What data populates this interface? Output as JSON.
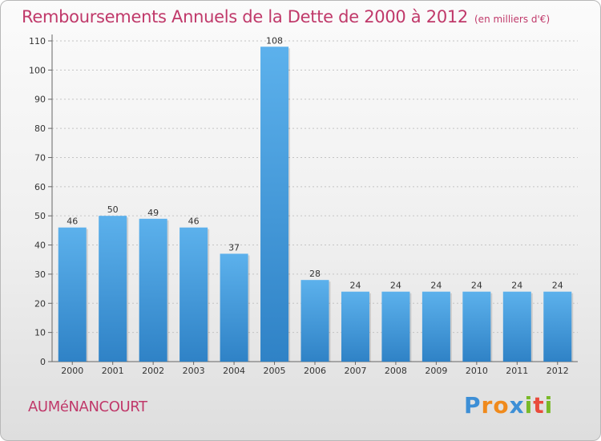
{
  "chart_data": {
    "type": "bar",
    "title": "Remboursements Annuels de la Dette de 2000 à 2012",
    "subtitle": "(en milliers d'€)",
    "categories": [
      "2000",
      "2001",
      "2002",
      "2003",
      "2004",
      "2005",
      "2006",
      "2007",
      "2008",
      "2009",
      "2010",
      "2011",
      "2012"
    ],
    "values": [
      46,
      50,
      49,
      46,
      37,
      108,
      28,
      24,
      24,
      24,
      24,
      24,
      24
    ],
    "ylim": [
      0,
      110
    ],
    "yticks": [
      0,
      10,
      20,
      30,
      40,
      50,
      60,
      70,
      80,
      90,
      100,
      110
    ],
    "xlabel": "",
    "ylabel": "",
    "grid": true,
    "bar_color": "#4a9fe0"
  },
  "footer": {
    "place": "AUMéNANCOURT",
    "logo_letters": [
      {
        "ch": "P",
        "color": "#3d8fd6"
      },
      {
        "ch": "r",
        "color": "#f08a1c"
      },
      {
        "ch": "o",
        "color": "#f08a1c"
      },
      {
        "ch": "x",
        "color": "#3d8fd6"
      },
      {
        "ch": "i",
        "color": "#79b928"
      },
      {
        "ch": "t",
        "color": "#e94b3c"
      },
      {
        "ch": "i",
        "color": "#79b928"
      }
    ]
  },
  "colors": {
    "accent": "#c0396a"
  }
}
